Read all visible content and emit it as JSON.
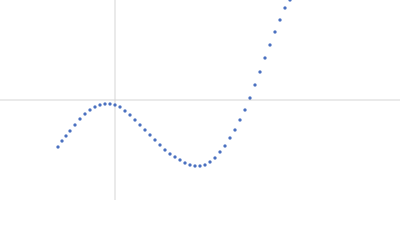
{
  "chart_data": {
    "type": "scatter",
    "color": "#4a70c0",
    "xlim": [
      -115,
      285
    ],
    "ylim": [
      -100,
      100
    ],
    "x": [
      -57,
      -53,
      -49,
      -45,
      -40,
      -35,
      -30,
      -25,
      -20,
      -15,
      -10,
      -5,
      0,
      5,
      10,
      15,
      20,
      25,
      30,
      35,
      40,
      45,
      50,
      55,
      60,
      65,
      70,
      75,
      80,
      85,
      90,
      95,
      100,
      105,
      110,
      115,
      120,
      125,
      130,
      135,
      140,
      145,
      150,
      155,
      160,
      165,
      170,
      175
    ],
    "values": [
      -47,
      -41,
      -36,
      -31,
      -25,
      -19,
      -14,
      -10,
      -7,
      -5,
      -4,
      -4,
      -5,
      -7,
      -11,
      -15,
      -20,
      -25,
      -30,
      -35,
      -40,
      -45,
      -50,
      -54,
      -57,
      -60,
      -63,
      -65,
      -66,
      -66,
      -65,
      -62,
      -58,
      -52,
      -46,
      -38,
      -30,
      -20,
      -10,
      2,
      15,
      28,
      42,
      55,
      68,
      80,
      92,
      100
    ]
  }
}
